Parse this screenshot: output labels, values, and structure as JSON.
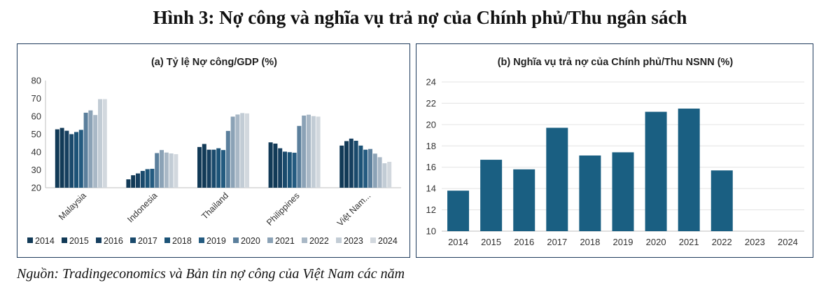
{
  "figure": {
    "title": "Hình 3: Nợ công và nghĩa vụ trả nợ của Chính phủ/Thu ngân sách",
    "source": "Nguồn: Tradingeconomics và Bản tin nợ công của Việt Nam các năm"
  },
  "colors": {
    "years": [
      "#123a57",
      "#123a57",
      "#163f5f",
      "#1a4a6c",
      "#1c5377",
      "#245b80",
      "#5b7f9c",
      "#8ba2b6",
      "#a9b8c6",
      "#c2ccd5",
      "#d2d8de"
    ],
    "bar_b": "#1a5f82",
    "axis": "#bfbfbf"
  },
  "chart_data": [
    {
      "type": "bar",
      "title": "(a) Tỷ lệ Nợ công/GDP (%)",
      "categories": [
        "Malaysia",
        "Indonesia",
        "Thailand",
        "Philippines",
        "Việt Nam..."
      ],
      "ylim": [
        20,
        80
      ],
      "yticks": [
        20,
        30,
        40,
        50,
        60,
        70,
        80
      ],
      "legend_position": "bottom",
      "series": [
        {
          "name": "2014",
          "values": [
            52.7,
            24.7,
            42.8,
            45.4,
            43.6
          ]
        },
        {
          "name": "2015",
          "values": [
            53.5,
            27.0,
            44.5,
            44.7,
            46.1
          ]
        },
        {
          "name": "2016",
          "values": [
            51.9,
            28.0,
            41.3,
            42.1,
            47.5
          ]
        },
        {
          "name": "2017",
          "values": [
            50.0,
            29.4,
            41.3,
            40.2,
            46.3
          ]
        },
        {
          "name": "2018",
          "values": [
            51.2,
            30.4,
            42.1,
            39.9,
            43.6
          ]
        },
        {
          "name": "2019",
          "values": [
            52.4,
            30.6,
            41.1,
            39.6,
            41.3
          ]
        },
        {
          "name": "2020",
          "values": [
            62.0,
            39.4,
            51.8,
            54.6,
            41.7
          ]
        },
        {
          "name": "2021",
          "values": [
            63.3,
            41.1,
            59.8,
            60.4,
            39.1
          ]
        },
        {
          "name": "2022",
          "values": [
            60.7,
            39.7,
            61.0,
            60.9,
            37.1
          ]
        },
        {
          "name": "2023",
          "values": [
            69.6,
            39.2,
            61.8,
            60.1,
            33.7
          ]
        },
        {
          "name": "2024",
          "values": [
            69.6,
            38.8,
            61.6,
            59.8,
            34.5
          ]
        }
      ]
    },
    {
      "type": "bar",
      "title": "(b) Nghĩa vụ trả nợ của Chính phủ/Thu NSNN (%)",
      "categories": [
        "2014",
        "2015",
        "2016",
        "2017",
        "2018",
        "2019",
        "2020",
        "2021",
        "2022",
        "2023",
        "2024"
      ],
      "values": [
        13.8,
        16.7,
        15.8,
        19.7,
        17.1,
        17.4,
        21.2,
        21.5,
        15.7,
        null,
        null
      ],
      "ylim": [
        10,
        24
      ],
      "yticks": [
        10,
        12,
        14,
        16,
        18,
        20,
        22,
        24
      ]
    }
  ]
}
